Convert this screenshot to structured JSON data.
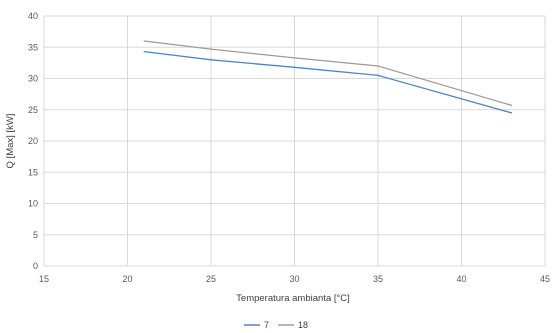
{
  "chart_data": {
    "type": "line",
    "title": "",
    "xlabel": "Temperatura ambianta [°C]",
    "ylabel": "Q [Max] [kW]",
    "xlim": [
      15,
      45
    ],
    "ylim": [
      0,
      40
    ],
    "xticks": [
      15,
      20,
      25,
      30,
      35,
      40,
      45
    ],
    "yticks": [
      0,
      5,
      10,
      15,
      20,
      25,
      30,
      35,
      40
    ],
    "grid": true,
    "legend_position": "bottom",
    "series": [
      {
        "name": "7",
        "color": "#4a86c8",
        "x": [
          21,
          25,
          30,
          35,
          43
        ],
        "y": [
          34.3,
          33.0,
          31.8,
          30.5,
          24.5
        ]
      },
      {
        "name": "18",
        "color": "#a09a96",
        "x": [
          21,
          25,
          30,
          35,
          43
        ],
        "y": [
          36.0,
          34.7,
          33.3,
          32.0,
          25.7
        ]
      }
    ]
  }
}
